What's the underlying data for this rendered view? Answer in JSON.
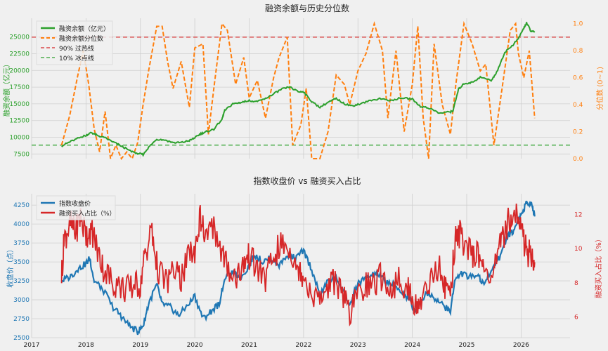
{
  "chart_data": [
    {
      "type": "line",
      "title": "融资余额与历史分位数",
      "ylabel_left": "融资余额（亿元）",
      "ylabel_right": "分位数 (0~1)",
      "ylim_left": [
        6800,
        27800
      ],
      "ylim_right": [
        0,
        1.04
      ],
      "yticks_left": [
        "10000",
        "12500",
        "15000",
        "17500",
        "20000",
        "22500",
        "25000",
        "7500"
      ],
      "yticks_left_values": [
        10000,
        12500,
        15000,
        17500,
        20000,
        22500,
        25000,
        7500
      ],
      "yticks_right": [
        "0.0",
        "0.2",
        "0.4",
        "0.6",
        "0.8",
        "1.0"
      ],
      "yticks_right_values": [
        0,
        0.2,
        0.4,
        0.6,
        0.8,
        1.0
      ],
      "legend_position": "top-left",
      "legend": [
        "融资余额（亿元）",
        "融资余额分位数",
        "90% 过热线",
        "10% 冰点线"
      ],
      "colors": {
        "balance": "#2ca02c",
        "percentile": "#ff7f0e",
        "hot": "#d62728",
        "cold": "#2ca02c"
      },
      "hline_hot": 0.9,
      "hline_cold": 0.1,
      "series_balance": [
        [
          2017.55,
          8700
        ],
        [
          2017.7,
          9300
        ],
        [
          2017.9,
          10000
        ],
        [
          2018.0,
          10300
        ],
        [
          2018.1,
          10700
        ],
        [
          2018.2,
          10300
        ],
        [
          2018.35,
          9900
        ],
        [
          2018.5,
          9300
        ],
        [
          2018.65,
          8700
        ],
        [
          2018.8,
          8000
        ],
        [
          2018.95,
          7600
        ],
        [
          2019.05,
          7400
        ],
        [
          2019.15,
          8500
        ],
        [
          2019.3,
          9700
        ],
        [
          2019.45,
          9600
        ],
        [
          2019.6,
          9200
        ],
        [
          2019.75,
          9200
        ],
        [
          2019.9,
          9500
        ],
        [
          2020.0,
          9900
        ],
        [
          2020.1,
          10500
        ],
        [
          2020.2,
          10800
        ],
        [
          2020.35,
          11200
        ],
        [
          2020.5,
          12700
        ],
        [
          2020.55,
          14000
        ],
        [
          2020.7,
          15000
        ],
        [
          2020.85,
          15200
        ],
        [
          2021.0,
          15500
        ],
        [
          2021.15,
          15300
        ],
        [
          2021.3,
          15800
        ],
        [
          2021.45,
          16500
        ],
        [
          2021.6,
          17200
        ],
        [
          2021.75,
          17500
        ],
        [
          2021.9,
          16800
        ],
        [
          2022.0,
          16800
        ],
        [
          2022.15,
          15300
        ],
        [
          2022.3,
          14500
        ],
        [
          2022.45,
          15200
        ],
        [
          2022.6,
          15800
        ],
        [
          2022.75,
          15000
        ],
        [
          2022.9,
          14700
        ],
        [
          2023.0,
          14900
        ],
        [
          2023.2,
          15400
        ],
        [
          2023.4,
          15800
        ],
        [
          2023.6,
          15500
        ],
        [
          2023.8,
          15900
        ],
        [
          2024.0,
          15700
        ],
        [
          2024.15,
          14600
        ],
        [
          2024.3,
          14400
        ],
        [
          2024.5,
          13600
        ],
        [
          2024.7,
          13800
        ],
        [
          2024.75,
          14000
        ],
        [
          2024.85,
          17200
        ],
        [
          2024.95,
          18000
        ],
        [
          2025.1,
          18200
        ],
        [
          2025.25,
          19000
        ],
        [
          2025.45,
          18500
        ],
        [
          2025.55,
          19700
        ],
        [
          2025.7,
          22700
        ],
        [
          2025.85,
          23800
        ],
        [
          2025.95,
          24800
        ],
        [
          2026.05,
          26300
        ],
        [
          2026.1,
          27100
        ],
        [
          2026.18,
          25900
        ],
        [
          2026.25,
          25700
        ]
      ],
      "series_percentile": [
        [
          2017.55,
          0.1
        ],
        [
          2017.7,
          0.32
        ],
        [
          2017.85,
          0.62
        ],
        [
          2017.95,
          0.8
        ],
        [
          2018.05,
          0.55
        ],
        [
          2018.15,
          0.22
        ],
        [
          2018.25,
          0.05
        ],
        [
          2018.35,
          0.35
        ],
        [
          2018.45,
          0.0
        ],
        [
          2018.55,
          0.1
        ],
        [
          2018.65,
          0.0
        ],
        [
          2018.75,
          0.05
        ],
        [
          2018.85,
          0.0
        ],
        [
          2018.95,
          0.12
        ],
        [
          2019.05,
          0.4
        ],
        [
          2019.15,
          0.65
        ],
        [
          2019.3,
          0.98
        ],
        [
          2019.4,
          0.98
        ],
        [
          2019.5,
          0.72
        ],
        [
          2019.6,
          0.52
        ],
        [
          2019.75,
          0.72
        ],
        [
          2019.9,
          0.38
        ],
        [
          2020.0,
          0.82
        ],
        [
          2020.15,
          0.85
        ],
        [
          2020.25,
          0.18
        ],
        [
          2020.35,
          0.52
        ],
        [
          2020.5,
          1.0
        ],
        [
          2020.6,
          0.95
        ],
        [
          2020.75,
          0.55
        ],
        [
          2020.9,
          0.75
        ],
        [
          2021.0,
          0.45
        ],
        [
          2021.15,
          0.58
        ],
        [
          2021.3,
          0.3
        ],
        [
          2021.45,
          0.6
        ],
        [
          2021.55,
          0.75
        ],
        [
          2021.7,
          0.9
        ],
        [
          2021.8,
          0.1
        ],
        [
          2021.95,
          0.25
        ],
        [
          2022.05,
          0.52
        ],
        [
          2022.15,
          0.0
        ],
        [
          2022.3,
          0.0
        ],
        [
          2022.45,
          0.2
        ],
        [
          2022.6,
          0.62
        ],
        [
          2022.75,
          0.55
        ],
        [
          2022.85,
          0.4
        ],
        [
          2023.0,
          0.65
        ],
        [
          2023.15,
          0.78
        ],
        [
          2023.3,
          1.0
        ],
        [
          2023.45,
          0.8
        ],
        [
          2023.55,
          0.3
        ],
        [
          2023.7,
          0.8
        ],
        [
          2023.85,
          0.2
        ],
        [
          2024.0,
          0.55
        ],
        [
          2024.1,
          0.98
        ],
        [
          2024.2,
          0.3
        ],
        [
          2024.3,
          0.0
        ],
        [
          2024.4,
          0.85
        ],
        [
          2024.55,
          0.4
        ],
        [
          2024.7,
          0.18
        ],
        [
          2024.8,
          0.55
        ],
        [
          2024.95,
          1.0
        ],
        [
          2025.1,
          0.85
        ],
        [
          2025.25,
          0.65
        ],
        [
          2025.35,
          0.7
        ],
        [
          2025.5,
          0.1
        ],
        [
          2025.65,
          0.52
        ],
        [
          2025.8,
          0.95
        ],
        [
          2025.9,
          1.0
        ],
        [
          2025.95,
          0.78
        ],
        [
          2026.05,
          0.6
        ],
        [
          2026.15,
          0.8
        ],
        [
          2026.25,
          0.3
        ]
      ]
    },
    {
      "type": "line",
      "title": "指数收盘价 vs 融资买入占比",
      "ylabel_left": "收盘价（点）",
      "ylabel_right": "融资买入占比（%）",
      "ylim_left": [
        2500,
        4400
      ],
      "ylim_right": [
        4.8,
        13.2
      ],
      "yticks_left": [
        "2500",
        "2750",
        "3000",
        "3250",
        "3500",
        "3750",
        "4000",
        "4250"
      ],
      "yticks_left_values": [
        2500,
        2750,
        3000,
        3250,
        3500,
        3750,
        4000,
        4250
      ],
      "yticks_right": [
        "6",
        "8",
        "10",
        "12"
      ],
      "yticks_right_values": [
        6,
        8,
        10,
        12
      ],
      "xlim": [
        2017.0,
        2026.9
      ],
      "xticks": [
        "2017",
        "2018",
        "2019",
        "2020",
        "2021",
        "2022",
        "2023",
        "2024",
        "2025",
        "2026"
      ],
      "xticks_values": [
        2017,
        2018,
        2019,
        2020,
        2021,
        2022,
        2023,
        2024,
        2025,
        2026
      ],
      "legend_position": "top-left",
      "legend": [
        "指数收盘价",
        "融资买入占比（%）"
      ],
      "colors": {
        "index": "#1f77b4",
        "ratio": "#d62728"
      },
      "series_index": [
        [
          2017.55,
          3250
        ],
        [
          2017.7,
          3300
        ],
        [
          2017.85,
          3400
        ],
        [
          2018.0,
          3480
        ],
        [
          2018.07,
          3550
        ],
        [
          2018.15,
          3250
        ],
        [
          2018.3,
          3150
        ],
        [
          2018.5,
          2900
        ],
        [
          2018.65,
          2780
        ],
        [
          2018.8,
          2650
        ],
        [
          2018.95,
          2580
        ],
        [
          2019.05,
          2650
        ],
        [
          2019.15,
          2950
        ],
        [
          2019.3,
          3200
        ],
        [
          2019.4,
          2950
        ],
        [
          2019.55,
          2900
        ],
        [
          2019.7,
          2800
        ],
        [
          2019.85,
          2900
        ],
        [
          2020.0,
          3050
        ],
        [
          2020.15,
          2750
        ],
        [
          2020.3,
          2850
        ],
        [
          2020.45,
          2950
        ],
        [
          2020.55,
          3300
        ],
        [
          2020.7,
          3350
        ],
        [
          2020.85,
          3300
        ],
        [
          2021.0,
          3450
        ],
        [
          2021.1,
          3600
        ],
        [
          2021.25,
          3500
        ],
        [
          2021.4,
          3550
        ],
        [
          2021.55,
          3450
        ],
        [
          2021.7,
          3600
        ],
        [
          2021.85,
          3550
        ],
        [
          2022.0,
          3650
        ],
        [
          2022.15,
          3400
        ],
        [
          2022.3,
          3050
        ],
        [
          2022.45,
          3250
        ],
        [
          2022.6,
          3300
        ],
        [
          2022.75,
          3100
        ],
        [
          2022.85,
          2900
        ],
        [
          2022.95,
          3150
        ],
        [
          2023.05,
          3250
        ],
        [
          2023.2,
          3300
        ],
        [
          2023.35,
          3350
        ],
        [
          2023.5,
          3250
        ],
        [
          2023.65,
          3200
        ],
        [
          2023.8,
          3100
        ],
        [
          2023.95,
          3000
        ],
        [
          2024.05,
          2850
        ],
        [
          2024.15,
          3000
        ],
        [
          2024.3,
          3100
        ],
        [
          2024.45,
          3000
        ],
        [
          2024.6,
          2900
        ],
        [
          2024.7,
          2850
        ],
        [
          2024.78,
          3250
        ],
        [
          2024.9,
          3350
        ],
        [
          2025.05,
          3300
        ],
        [
          2025.2,
          3350
        ],
        [
          2025.3,
          3200
        ],
        [
          2025.45,
          3400
        ],
        [
          2025.6,
          3550
        ],
        [
          2025.75,
          3850
        ],
        [
          2025.85,
          3900
        ],
        [
          2025.95,
          4050
        ],
        [
          2026.05,
          4200
        ],
        [
          2026.12,
          4300
        ],
        [
          2026.2,
          4250
        ],
        [
          2026.25,
          4100
        ]
      ],
      "series_ratio": [
        [
          2017.55,
          8.5
        ],
        [
          2017.6,
          10.5
        ],
        [
          2017.7,
          11.5
        ],
        [
          2017.8,
          11.0
        ],
        [
          2017.9,
          11.8
        ],
        [
          2018.0,
          10.8
        ],
        [
          2018.1,
          11.2
        ],
        [
          2018.2,
          10.0
        ],
        [
          2018.3,
          9.0
        ],
        [
          2018.45,
          8.2
        ],
        [
          2018.6,
          7.8
        ],
        [
          2018.75,
          7.6
        ],
        [
          2018.9,
          7.8
        ],
        [
          2019.0,
          8.0
        ],
        [
          2019.1,
          9.8
        ],
        [
          2019.2,
          11.0
        ],
        [
          2019.3,
          9.0
        ],
        [
          2019.45,
          8.0
        ],
        [
          2019.6,
          8.5
        ],
        [
          2019.75,
          8.3
        ],
        [
          2019.9,
          9.5
        ],
        [
          2020.0,
          10.0
        ],
        [
          2020.1,
          11.8
        ],
        [
          2020.2,
          10.5
        ],
        [
          2020.35,
          11.3
        ],
        [
          2020.5,
          9.8
        ],
        [
          2020.6,
          9.0
        ],
        [
          2020.75,
          8.3
        ],
        [
          2020.9,
          9.2
        ],
        [
          2021.0,
          9.5
        ],
        [
          2021.15,
          8.8
        ],
        [
          2021.3,
          8.2
        ],
        [
          2021.45,
          9.5
        ],
        [
          2021.6,
          10.3
        ],
        [
          2021.75,
          10.0
        ],
        [
          2021.9,
          9.0
        ],
        [
          2022.0,
          8.5
        ],
        [
          2022.15,
          7.5
        ],
        [
          2022.3,
          7.0
        ],
        [
          2022.45,
          7.8
        ],
        [
          2022.6,
          8.2
        ],
        [
          2022.75,
          7.0
        ],
        [
          2022.85,
          6.2
        ],
        [
          2023.0,
          7.2
        ],
        [
          2023.15,
          8.0
        ],
        [
          2023.3,
          7.8
        ],
        [
          2023.45,
          8.5
        ],
        [
          2023.6,
          7.5
        ],
        [
          2023.75,
          8.2
        ],
        [
          2023.9,
          7.8
        ],
        [
          2024.0,
          7.2
        ],
        [
          2024.1,
          6.2
        ],
        [
          2024.2,
          7.6
        ],
        [
          2024.35,
          8.3
        ],
        [
          2024.5,
          8.8
        ],
        [
          2024.6,
          7.6
        ],
        [
          2024.7,
          7.2
        ],
        [
          2024.78,
          10.3
        ],
        [
          2024.85,
          11.0
        ],
        [
          2024.95,
          10.2
        ],
        [
          2025.1,
          9.5
        ],
        [
          2025.2,
          10.0
        ],
        [
          2025.3,
          8.8
        ],
        [
          2025.45,
          8.6
        ],
        [
          2025.55,
          9.2
        ],
        [
          2025.65,
          10.5
        ],
        [
          2025.75,
          11.5
        ],
        [
          2025.85,
          12.2
        ],
        [
          2025.95,
          11.8
        ],
        [
          2026.05,
          10.5
        ],
        [
          2026.12,
          9.8
        ],
        [
          2026.2,
          9.5
        ],
        [
          2026.25,
          9.2
        ]
      ]
    }
  ]
}
